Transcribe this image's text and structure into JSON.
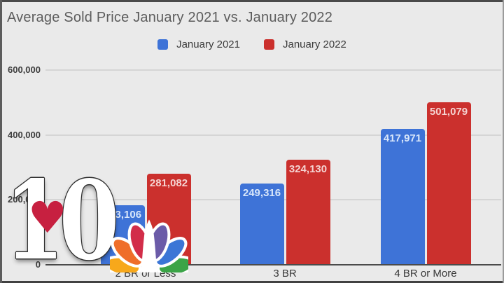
{
  "chart_data": {
    "type": "bar",
    "title": "Average Sold Price January 2021 vs. January 2022",
    "xlabel": "",
    "ylabel": "",
    "categories": [
      "2 BR or Less",
      "3 BR",
      "4 BR or More"
    ],
    "series": [
      {
        "name": "January 2021",
        "color": "#3e73d7",
        "label_color": "#d8e6fa",
        "values": [
          183106,
          249316,
          417971
        ]
      },
      {
        "name": "January 2022",
        "color": "#cb302d",
        "label_color": "#f5d3d1",
        "values": [
          281082,
          324130,
          501079
        ]
      }
    ],
    "y_ticks": [
      {
        "label": "600,000",
        "value": 600000
      },
      {
        "label": "400,000",
        "value": 400000
      },
      {
        "label": "200,000",
        "value": 200000
      },
      {
        "label": "0",
        "value": 0
      }
    ],
    "ylim": [
      0,
      630000
    ],
    "grid": true,
    "legend_position": "top",
    "data_labels": "inside-top"
  },
  "watermark": {
    "station_number": "10",
    "heart_color": "#c72040",
    "peacock_colors": {
      "yellow": "#f7a81b",
      "orange": "#ef6e2a",
      "red": "#d22d49",
      "purple": "#6b5ba8",
      "blue": "#3b76d6",
      "green": "#3ba447"
    }
  }
}
